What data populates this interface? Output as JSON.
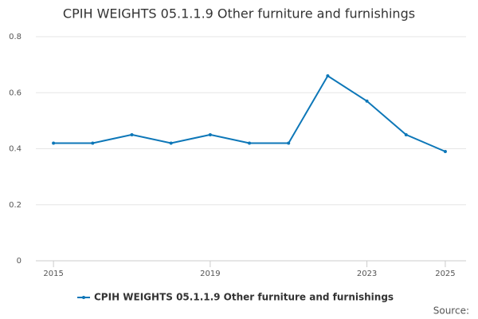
{
  "chart_data": {
    "type": "line",
    "title": "CPIH WEIGHTS 05.1.1.9 Other furniture and furnishings",
    "x": [
      2015,
      2016,
      2017,
      2018,
      2019,
      2020,
      2021,
      2022,
      2023,
      2024,
      2025
    ],
    "series": [
      {
        "name": "CPIH WEIGHTS 05.1.1.9 Other furniture and furnishings",
        "color": "#0d77b8",
        "values": [
          0.42,
          0.42,
          0.45,
          0.42,
          0.45,
          0.42,
          0.42,
          0.66,
          0.57,
          0.45,
          0.39
        ]
      }
    ],
    "xlim": [
      2014.55,
      2025.53
    ],
    "xticks": [
      2015,
      2019,
      2023,
      2025
    ],
    "ylim": [
      0,
      0.8
    ],
    "yticks": [
      0,
      0.2,
      0.4,
      0.6,
      0.8
    ],
    "grid": true,
    "legend": "bottom",
    "source": "Source:"
  }
}
